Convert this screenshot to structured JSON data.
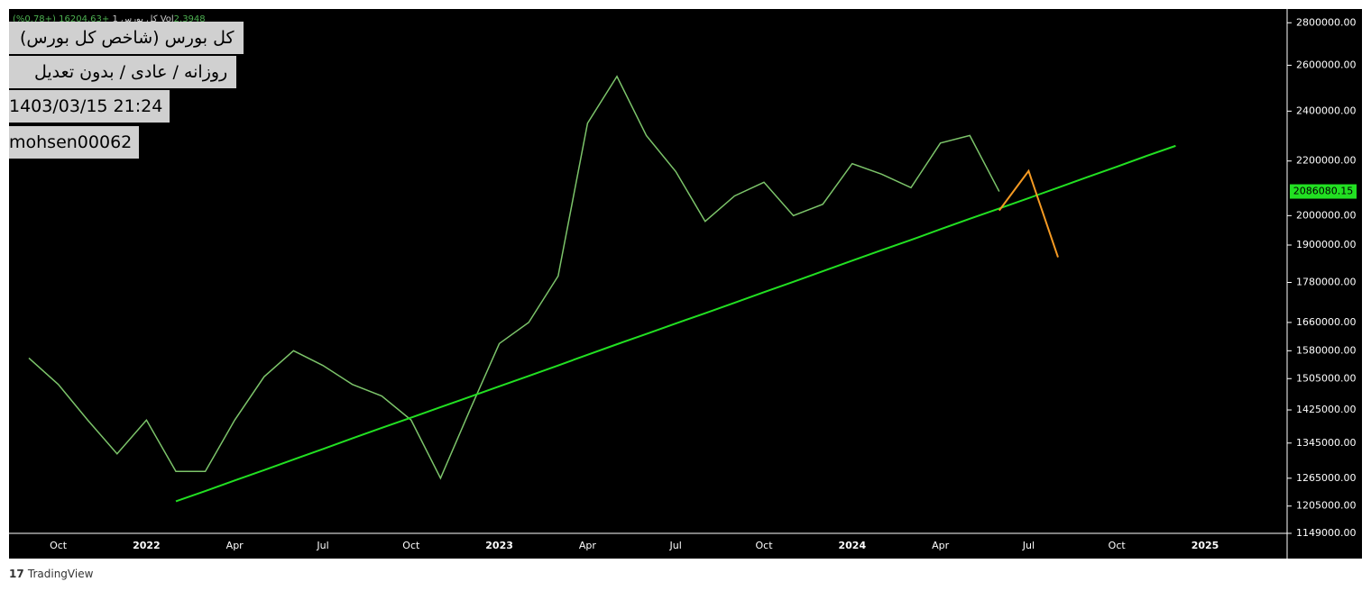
{
  "chart_data": {
    "type": "line",
    "header": {
      "symbol": "کل بورس 1",
      "change": "+16204.63 (+0.78%)",
      "volume_label": "Vol",
      "volume": "2.3948"
    },
    "info": [
      "کل بورس (شاخص کل بورس)",
      "روزانه / عادی / بدون تعدیل",
      "1403/03/15 21:24",
      "mohsen00062"
    ],
    "brand": "TradingView",
    "categories": [
      null,
      "Oct",
      null,
      null,
      "2022",
      null,
      null,
      "Apr",
      null,
      null,
      "Jul",
      null,
      null,
      "Oct",
      null,
      null,
      "2023",
      null,
      null,
      "Apr",
      null,
      null,
      "Jul",
      null,
      null,
      "Oct",
      null,
      null,
      "2024",
      null,
      null,
      "Apr",
      null,
      null,
      "Jul",
      null,
      null,
      "Oct",
      null,
      null,
      "2025",
      null,
      null
    ],
    "series": [
      {
        "color": "#7cc46a",
        "values": [
          1560000,
          1490000,
          1400000,
          1320000,
          1400000,
          1280000,
          1280000,
          1400000,
          1510000,
          1580000,
          1540000,
          1490000,
          1460000,
          1400000,
          1265000,
          1425000,
          1600000,
          1660000,
          1800000,
          2350000,
          2550000,
          2300000,
          2160000,
          1980000,
          2070000,
          2120000,
          2000000,
          2040000,
          2190000,
          2150000,
          2100000,
          2270000,
          2300000,
          2086080.15,
          null,
          null,
          null,
          null,
          null,
          null,
          null,
          null,
          null
        ]
      },
      {
        "color": "#22e022",
        "values": [
          null,
          null,
          null,
          null,
          null,
          1215000,
          1237000,
          1260000,
          1283000,
          1307000,
          1331000,
          1356000,
          1381000,
          1406000,
          1432000,
          1458000,
          1485000,
          1512000,
          1540000,
          1569000,
          1598000,
          1627000,
          1657000,
          1687000,
          1718000,
          1750000,
          1782000,
          1815000,
          1849000,
          1883000,
          1917000,
          1953000,
          1989000,
          2025000,
          2062000,
          2100000,
          2139000,
          2178000,
          2219000,
          2259000,
          null,
          null,
          null
        ]
      },
      {
        "color": "#f59a23",
        "values": [
          null,
          null,
          null,
          null,
          null,
          null,
          null,
          null,
          null,
          null,
          null,
          null,
          null,
          null,
          null,
          null,
          null,
          null,
          null,
          null,
          null,
          null,
          null,
          null,
          null,
          null,
          null,
          null,
          null,
          null,
          null,
          null,
          null,
          2018000,
          2162000,
          1860000,
          null,
          null,
          null,
          null,
          null,
          null,
          null
        ]
      }
    ],
    "last_price": 2086080.15,
    "last_price_color": "#22e022",
    "log_scale": true,
    "ylim": [
      1149000,
      2868000
    ],
    "yticks": [
      {
        "value": 2800000,
        "label": "2800000.00"
      },
      {
        "value": 2600000,
        "label": "2600000.00"
      },
      {
        "value": 2400000,
        "label": "2400000.00"
      },
      {
        "value": 2200000,
        "label": "2200000.00"
      },
      {
        "value": 2000000,
        "label": "2000000.00"
      },
      {
        "value": 1900000,
        "label": "1900000.00"
      },
      {
        "value": 1780000,
        "label": "1780000.00"
      },
      {
        "value": 1660000,
        "label": "1660000.00"
      },
      {
        "value": 1580000,
        "label": "1580000.00"
      },
      {
        "value": 1505000,
        "label": "1505000.00"
      },
      {
        "value": 1425000,
        "label": "1425000.00"
      },
      {
        "value": 1345000,
        "label": "1345000.00"
      },
      {
        "value": 1265000,
        "label": "1265000.00"
      },
      {
        "value": 1205000,
        "label": "1205000.00"
      },
      {
        "value": 1149000,
        "label": "1149000.00"
      }
    ]
  }
}
